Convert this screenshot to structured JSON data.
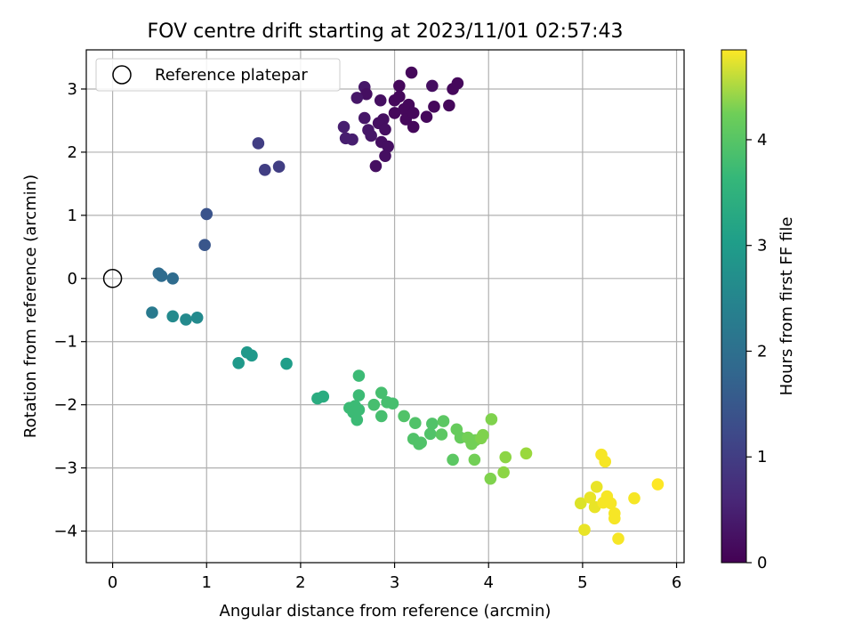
{
  "chart_data": {
    "type": "scatter",
    "title": "FOV centre drift starting at 2023/11/01 02:57:43",
    "xlabel": "Angular distance from reference (arcmin)",
    "ylabel": "Rotation from reference (arcmin)",
    "xlim": [
      -0.28,
      6.08
    ],
    "ylim": [
      -4.5,
      3.62
    ],
    "xticks": [
      0,
      1,
      2,
      3,
      4,
      5,
      6
    ],
    "yticks": [
      -4,
      -3,
      -2,
      -1,
      0,
      1,
      2,
      3
    ],
    "grid": true,
    "legend": {
      "placement": "top-left",
      "entries": [
        "Reference platepar"
      ]
    },
    "reference_point": {
      "x": 0,
      "y": 0,
      "label": "Reference platepar"
    },
    "colorbar": {
      "label": "Hours from first FF file",
      "colormap": "viridis",
      "range": [
        0,
        4.85
      ],
      "ticks": [
        0,
        1,
        2,
        3,
        4
      ]
    },
    "series": [
      {
        "points": [
          {
            "x": 3.18,
            "y": 3.26,
            "c": 0.1
          },
          {
            "x": 3.05,
            "y": 3.05,
            "c": 0.1
          },
          {
            "x": 3.62,
            "y": 3.0,
            "c": 0.1
          },
          {
            "x": 3.67,
            "y": 3.09,
            "c": 0.1
          },
          {
            "x": 3.4,
            "y": 3.05,
            "c": 0.2
          },
          {
            "x": 2.68,
            "y": 3.03,
            "c": 0.3
          },
          {
            "x": 2.7,
            "y": 2.92,
            "c": 0.2
          },
          {
            "x": 2.6,
            "y": 2.86,
            "c": 0.3
          },
          {
            "x": 2.85,
            "y": 2.82,
            "c": 0.2
          },
          {
            "x": 3.0,
            "y": 2.82,
            "c": 0.1
          },
          {
            "x": 3.05,
            "y": 2.88,
            "c": 0.1
          },
          {
            "x": 3.15,
            "y": 2.75,
            "c": 0.1
          },
          {
            "x": 3.1,
            "y": 2.68,
            "c": 0.1
          },
          {
            "x": 3.0,
            "y": 2.62,
            "c": 0.1
          },
          {
            "x": 3.12,
            "y": 2.52,
            "c": 0.1
          },
          {
            "x": 3.2,
            "y": 2.62,
            "c": 0.1
          },
          {
            "x": 3.34,
            "y": 2.56,
            "c": 0.1
          },
          {
            "x": 3.42,
            "y": 2.72,
            "c": 0.1
          },
          {
            "x": 3.58,
            "y": 2.74,
            "c": 0.1
          },
          {
            "x": 2.88,
            "y": 2.52,
            "c": 0.2
          },
          {
            "x": 2.83,
            "y": 2.46,
            "c": 0.2
          },
          {
            "x": 2.68,
            "y": 2.54,
            "c": 0.3
          },
          {
            "x": 2.9,
            "y": 2.36,
            "c": 0.2
          },
          {
            "x": 2.72,
            "y": 2.35,
            "c": 0.3
          },
          {
            "x": 2.75,
            "y": 2.26,
            "c": 0.3
          },
          {
            "x": 2.86,
            "y": 2.16,
            "c": 0.2
          },
          {
            "x": 2.93,
            "y": 2.09,
            "c": 0.2
          },
          {
            "x": 3.2,
            "y": 2.4,
            "c": 0.1
          },
          {
            "x": 2.55,
            "y": 2.2,
            "c": 0.4
          },
          {
            "x": 2.48,
            "y": 2.22,
            "c": 0.4
          },
          {
            "x": 2.46,
            "y": 2.4,
            "c": 0.4
          },
          {
            "x": 2.9,
            "y": 1.94,
            "c": 0.2
          },
          {
            "x": 2.8,
            "y": 1.78,
            "c": 0.2
          },
          {
            "x": 1.55,
            "y": 2.14,
            "c": 0.9
          },
          {
            "x": 1.62,
            "y": 1.72,
            "c": 0.9
          },
          {
            "x": 1.77,
            "y": 1.77,
            "c": 0.9
          },
          {
            "x": 1.0,
            "y": 1.02,
            "c": 1.25
          },
          {
            "x": 0.98,
            "y": 0.53,
            "c": 1.3
          },
          {
            "x": 0.49,
            "y": 0.08,
            "c": 1.7
          },
          {
            "x": 0.52,
            "y": 0.04,
            "c": 1.7
          },
          {
            "x": 0.64,
            "y": 0.0,
            "c": 1.7
          },
          {
            "x": 0.42,
            "y": -0.54,
            "c": 2.0
          },
          {
            "x": 0.64,
            "y": -0.6,
            "c": 2.3
          },
          {
            "x": 0.78,
            "y": -0.65,
            "c": 2.3
          },
          {
            "x": 0.9,
            "y": -0.62,
            "c": 2.3
          },
          {
            "x": 1.34,
            "y": -1.34,
            "c": 2.6
          },
          {
            "x": 1.43,
            "y": -1.17,
            "c": 2.6
          },
          {
            "x": 1.48,
            "y": -1.22,
            "c": 2.6
          },
          {
            "x": 1.85,
            "y": -1.35,
            "c": 2.7
          },
          {
            "x": 2.18,
            "y": -1.9,
            "c": 3.0
          },
          {
            "x": 2.24,
            "y": -1.87,
            "c": 3.0
          },
          {
            "x": 2.62,
            "y": -1.54,
            "c": 3.3
          },
          {
            "x": 2.62,
            "y": -1.85,
            "c": 3.3
          },
          {
            "x": 2.52,
            "y": -2.05,
            "c": 3.3
          },
          {
            "x": 2.58,
            "y": -2.02,
            "c": 3.3
          },
          {
            "x": 2.56,
            "y": -2.12,
            "c": 3.3
          },
          {
            "x": 2.6,
            "y": -2.24,
            "c": 3.3
          },
          {
            "x": 2.62,
            "y": -2.08,
            "c": 3.3
          },
          {
            "x": 2.78,
            "y": -2.0,
            "c": 3.4
          },
          {
            "x": 2.86,
            "y": -1.81,
            "c": 3.4
          },
          {
            "x": 2.92,
            "y": -1.96,
            "c": 3.4
          },
          {
            "x": 2.98,
            "y": -1.98,
            "c": 3.4
          },
          {
            "x": 2.86,
            "y": -2.18,
            "c": 3.4
          },
          {
            "x": 3.1,
            "y": -2.18,
            "c": 3.5
          },
          {
            "x": 3.22,
            "y": -2.29,
            "c": 3.5
          },
          {
            "x": 3.2,
            "y": -2.54,
            "c": 3.5
          },
          {
            "x": 3.26,
            "y": -2.62,
            "c": 3.5
          },
          {
            "x": 3.28,
            "y": -2.6,
            "c": 3.5
          },
          {
            "x": 3.38,
            "y": -2.46,
            "c": 3.5
          },
          {
            "x": 3.4,
            "y": -2.3,
            "c": 3.5
          },
          {
            "x": 3.52,
            "y": -2.26,
            "c": 3.6
          },
          {
            "x": 3.5,
            "y": -2.47,
            "c": 3.6
          },
          {
            "x": 3.62,
            "y": -2.87,
            "c": 3.6
          },
          {
            "x": 3.66,
            "y": -2.39,
            "c": 3.7
          },
          {
            "x": 3.7,
            "y": -2.52,
            "c": 3.7
          },
          {
            "x": 3.78,
            "y": -2.52,
            "c": 3.8
          },
          {
            "x": 3.82,
            "y": -2.62,
            "c": 3.8
          },
          {
            "x": 3.86,
            "y": -2.56,
            "c": 3.8
          },
          {
            "x": 3.85,
            "y": -2.87,
            "c": 3.8
          },
          {
            "x": 3.92,
            "y": -2.53,
            "c": 3.9
          },
          {
            "x": 3.94,
            "y": -2.48,
            "c": 3.9
          },
          {
            "x": 4.03,
            "y": -2.23,
            "c": 3.9
          },
          {
            "x": 4.02,
            "y": -3.17,
            "c": 3.9
          },
          {
            "x": 4.16,
            "y": -3.07,
            "c": 4.0
          },
          {
            "x": 4.18,
            "y": -2.83,
            "c": 4.0
          },
          {
            "x": 4.4,
            "y": -2.77,
            "c": 4.1
          },
          {
            "x": 4.98,
            "y": -3.56,
            "c": 4.6
          },
          {
            "x": 5.02,
            "y": -3.98,
            "c": 4.7
          },
          {
            "x": 5.08,
            "y": -3.47,
            "c": 4.7
          },
          {
            "x": 5.13,
            "y": -3.62,
            "c": 4.7
          },
          {
            "x": 5.15,
            "y": -3.3,
            "c": 4.7
          },
          {
            "x": 5.2,
            "y": -2.79,
            "c": 4.8
          },
          {
            "x": 5.24,
            "y": -2.9,
            "c": 4.8
          },
          {
            "x": 5.22,
            "y": -3.55,
            "c": 4.8
          },
          {
            "x": 5.26,
            "y": -3.45,
            "c": 4.8
          },
          {
            "x": 5.3,
            "y": -3.56,
            "c": 4.8
          },
          {
            "x": 5.34,
            "y": -3.72,
            "c": 4.8
          },
          {
            "x": 5.34,
            "y": -3.8,
            "c": 4.8
          },
          {
            "x": 5.38,
            "y": -4.12,
            "c": 4.8
          },
          {
            "x": 5.55,
            "y": -3.48,
            "c": 4.8
          },
          {
            "x": 5.8,
            "y": -3.26,
            "c": 4.85
          }
        ]
      }
    ]
  }
}
